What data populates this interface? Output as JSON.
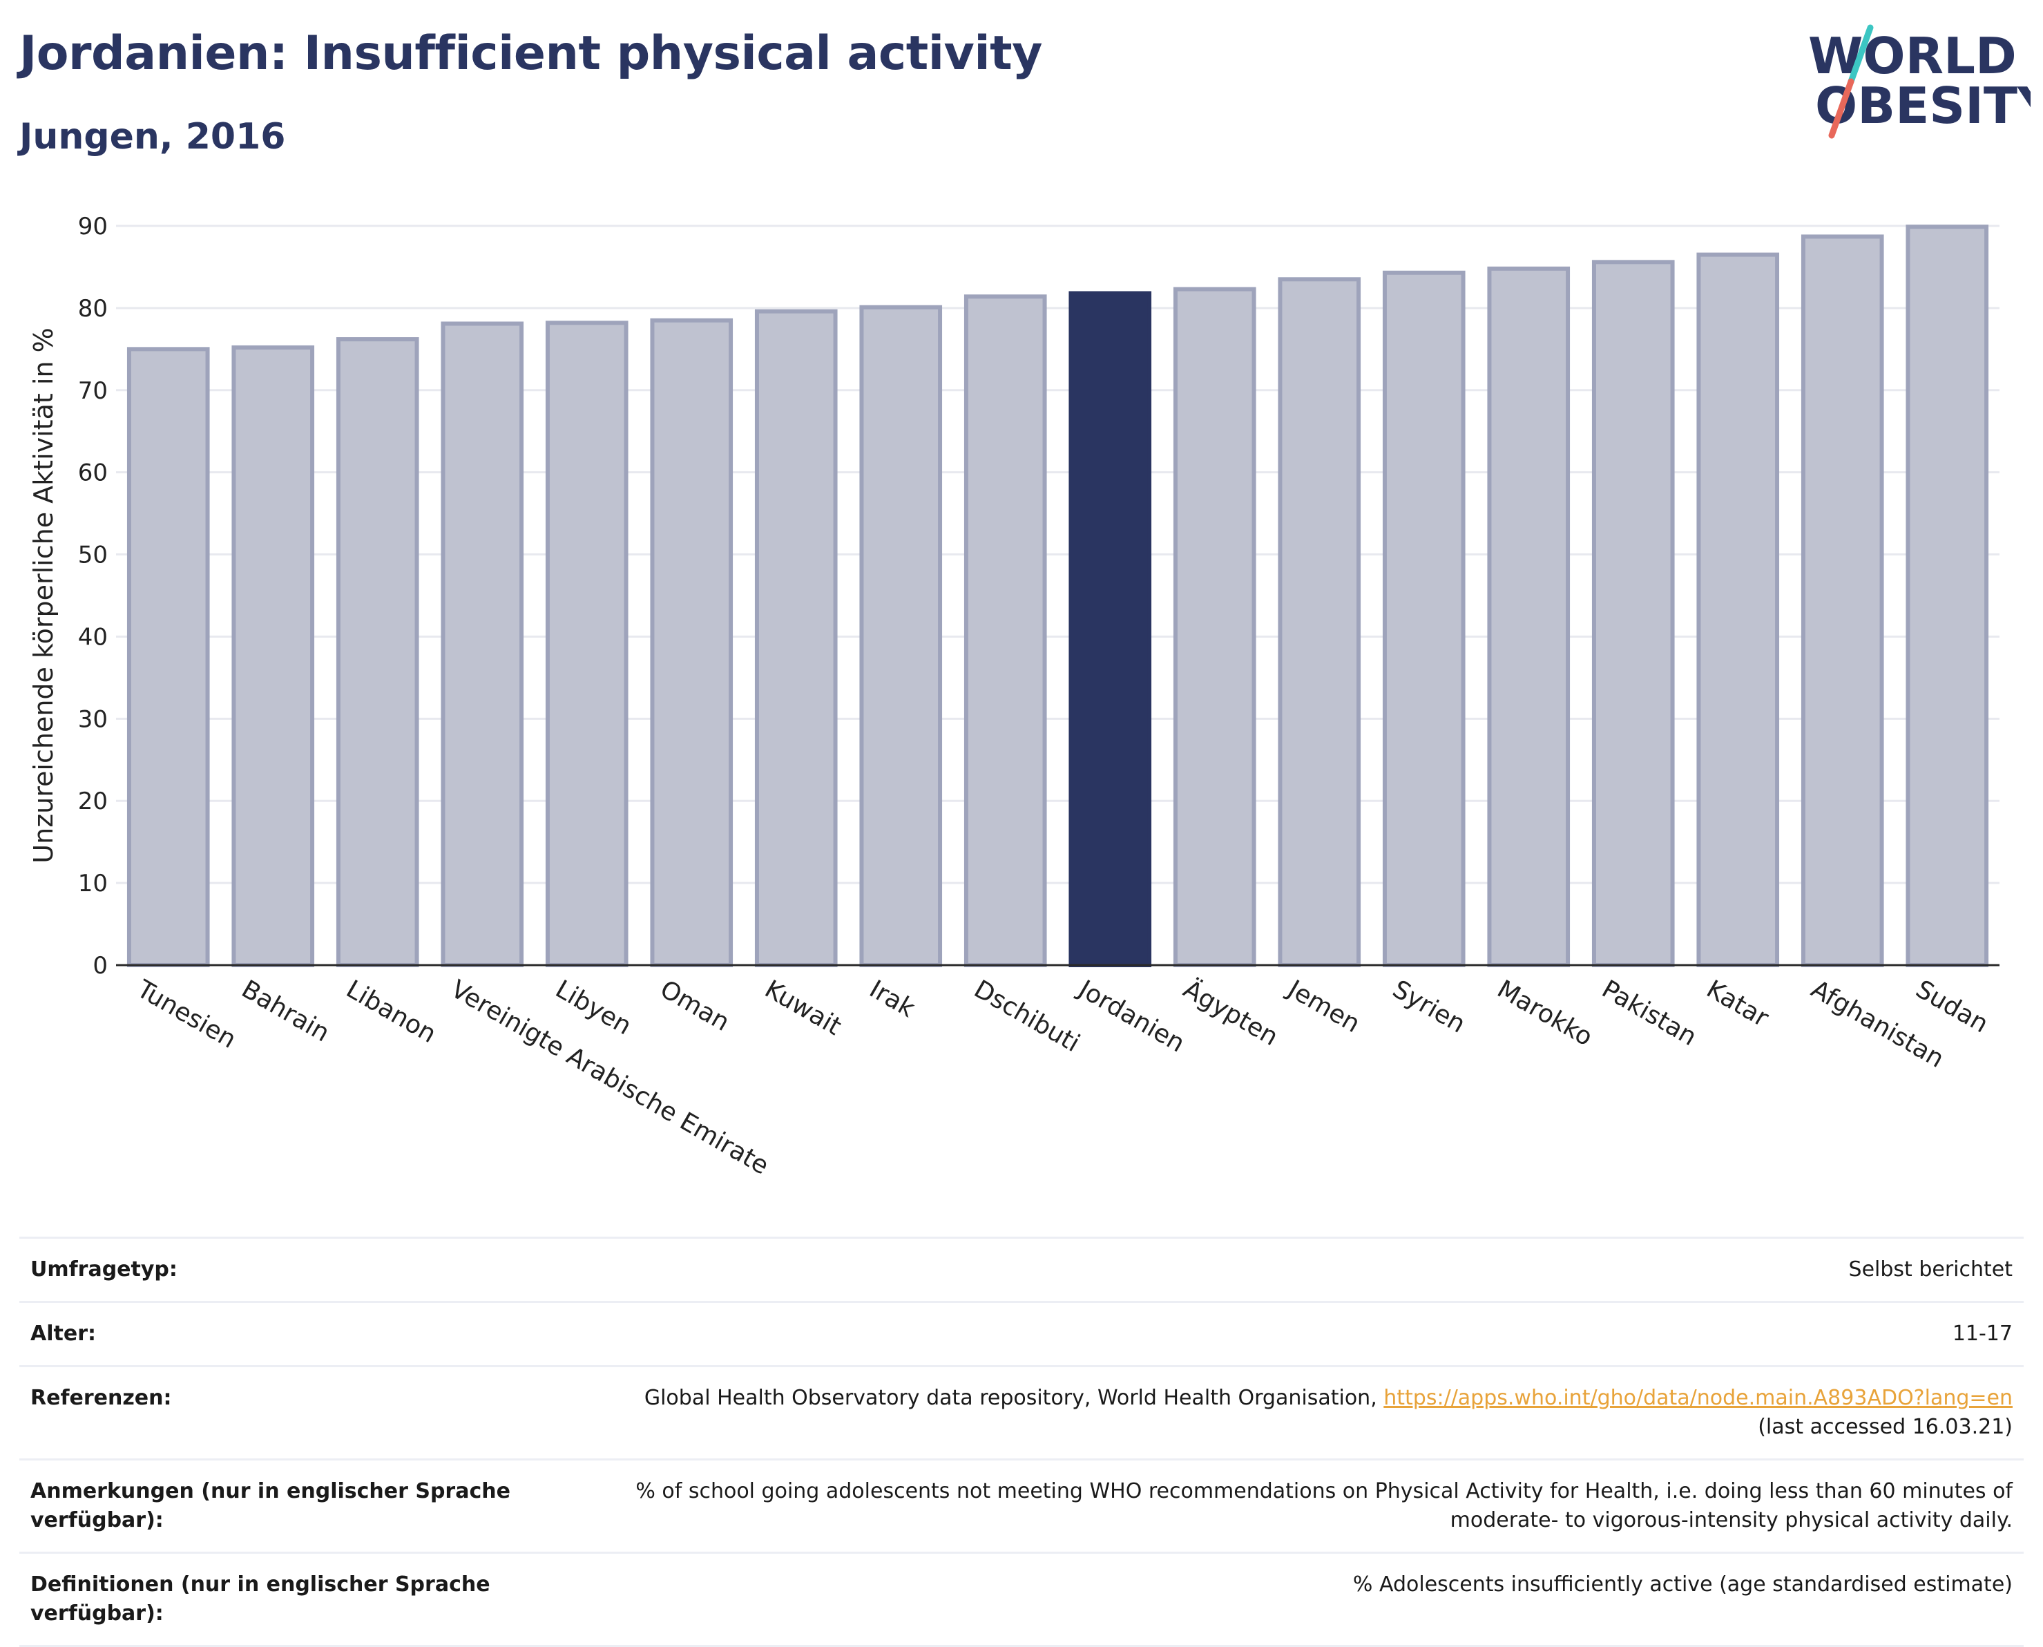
{
  "header": {
    "title": "Jordanien: Insufficient physical activity",
    "subtitle": "Jungen, 2016"
  },
  "logo": {
    "line1": "WORLD",
    "line2": "OBESITY",
    "text_color": "#2a3561",
    "slash_colors": [
      "#3cc6c3",
      "#e8685a"
    ]
  },
  "colors": {
    "highlight": "#2a3561",
    "bar_fill": "#bfc2d0",
    "bar_stroke": "#9ea3bb",
    "grid": "#e8e9ef",
    "link": "#e8a33a"
  },
  "chart_data": {
    "type": "bar",
    "title": "",
    "xlabel": "",
    "ylabel": "Unzureichende körperliche Aktivität in %",
    "ylim": [
      0,
      90
    ],
    "yticks": [
      0,
      10,
      20,
      30,
      40,
      50,
      60,
      70,
      80,
      90
    ],
    "grid": true,
    "highlight": "Jordanien",
    "categories": [
      "Tunesien",
      "Bahrain",
      "Libanon",
      "Vereinigte Arabische Emirate",
      "Libyen",
      "Oman",
      "Kuwait",
      "Irak",
      "Dschibuti",
      "Jordanien",
      "Ägypten",
      "Jemen",
      "Syrien",
      "Marokko",
      "Pakistan",
      "Katar",
      "Afghanistan",
      "Sudan"
    ],
    "values": [
      75.0,
      75.2,
      76.2,
      78.1,
      78.2,
      78.5,
      79.6,
      80.1,
      81.4,
      81.8,
      82.3,
      83.5,
      84.3,
      84.8,
      85.6,
      86.5,
      88.7,
      89.9
    ]
  },
  "info": {
    "survey_type_label": "Umfragetyp:",
    "survey_type_value": "Selbst berichtet",
    "age_label": "Alter:",
    "age_value": "11-17",
    "references_label": "Referenzen:",
    "references_text": "Global Health Observatory data repository, World Health Organisation, ",
    "references_link": "https://apps.who.int/gho/data/node.main.A893ADO?lang=en",
    "references_note": "(last accessed 16.03.21)",
    "notes_label": "Anmerkungen (nur in englischer Sprache verfügbar):",
    "notes_value": "% of school going adolescents not meeting WHO recommendations on Physical Activity for Health, i.e. doing less than 60 minutes of moderate- to vigorous-intensity physical activity daily.",
    "definitions_label": "Definitionen (nur in englischer Sprache verfügbar):",
    "definitions_value": "% Adolescents insufficiently active (age standardised estimate)"
  }
}
